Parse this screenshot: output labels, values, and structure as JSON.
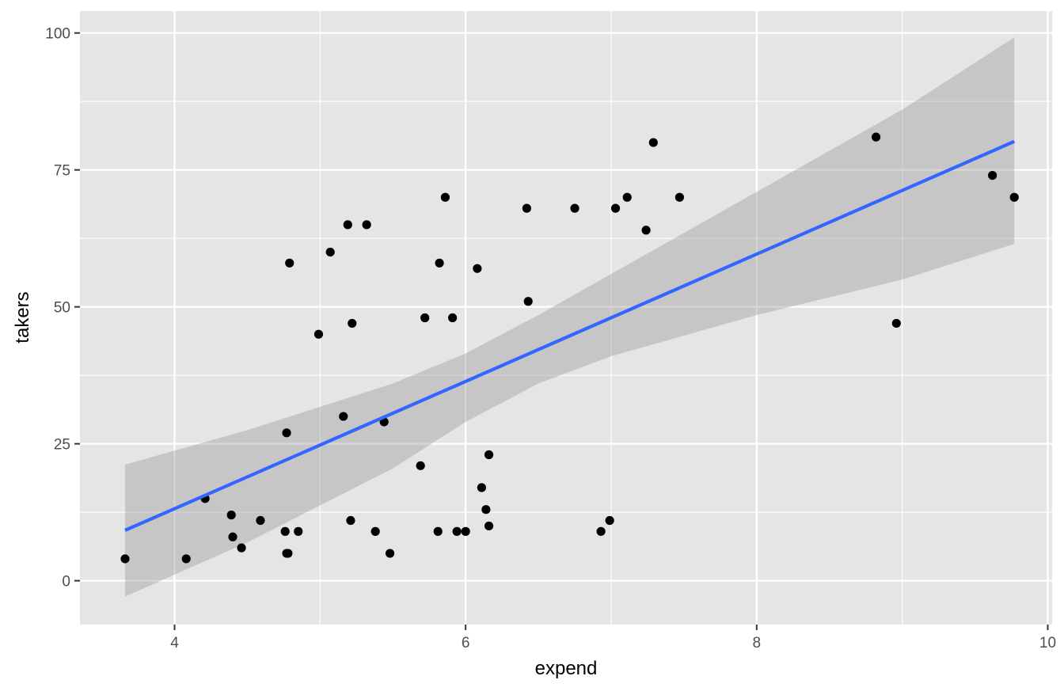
{
  "chart_data": {
    "type": "scatter",
    "xlabel": "expend",
    "ylabel": "takers",
    "xlim": [
      3.35,
      10.03
    ],
    "ylim": [
      -8.0,
      104.0
    ],
    "x_ticks": [
      4,
      6,
      8,
      10
    ],
    "y_ticks": [
      0,
      25,
      50,
      75,
      100
    ],
    "x_tick_labels": [
      "4",
      "6",
      "8",
      "10"
    ],
    "y_tick_labels": [
      "0",
      "25",
      "50",
      "75",
      "100"
    ],
    "grid": true,
    "legend": "none",
    "colors": {
      "panel": "#e5e5e5",
      "grid": "#ffffff",
      "points": "#000000",
      "fit_line": "#3366ff",
      "confidence_band": "#999999"
    },
    "points": [
      {
        "x": 3.66,
        "y": 4
      },
      {
        "x": 4.08,
        "y": 4
      },
      {
        "x": 4.21,
        "y": 15
      },
      {
        "x": 4.39,
        "y": 12
      },
      {
        "x": 4.4,
        "y": 8
      },
      {
        "x": 4.46,
        "y": 6
      },
      {
        "x": 4.59,
        "y": 11
      },
      {
        "x": 4.76,
        "y": 9
      },
      {
        "x": 4.77,
        "y": 27
      },
      {
        "x": 4.77,
        "y": 5
      },
      {
        "x": 4.78,
        "y": 5
      },
      {
        "x": 4.79,
        "y": 58
      },
      {
        "x": 4.85,
        "y": 9
      },
      {
        "x": 4.99,
        "y": 45
      },
      {
        "x": 5.07,
        "y": 60
      },
      {
        "x": 5.16,
        "y": 30
      },
      {
        "x": 5.19,
        "y": 65
      },
      {
        "x": 5.21,
        "y": 11
      },
      {
        "x": 5.22,
        "y": 47
      },
      {
        "x": 5.32,
        "y": 65
      },
      {
        "x": 5.38,
        "y": 9
      },
      {
        "x": 5.44,
        "y": 29
      },
      {
        "x": 5.48,
        "y": 5
      },
      {
        "x": 5.69,
        "y": 21
      },
      {
        "x": 5.72,
        "y": 48
      },
      {
        "x": 5.81,
        "y": 9
      },
      {
        "x": 5.82,
        "y": 58
      },
      {
        "x": 5.86,
        "y": 70
      },
      {
        "x": 5.91,
        "y": 48
      },
      {
        "x": 5.94,
        "y": 9
      },
      {
        "x": 6.0,
        "y": 9
      },
      {
        "x": 6.08,
        "y": 57
      },
      {
        "x": 6.11,
        "y": 17
      },
      {
        "x": 6.14,
        "y": 13
      },
      {
        "x": 6.16,
        "y": 10
      },
      {
        "x": 6.16,
        "y": 23
      },
      {
        "x": 6.42,
        "y": 68
      },
      {
        "x": 6.43,
        "y": 51
      },
      {
        "x": 6.75,
        "y": 68
      },
      {
        "x": 6.93,
        "y": 9
      },
      {
        "x": 6.99,
        "y": 11
      },
      {
        "x": 7.03,
        "y": 68
      },
      {
        "x": 7.11,
        "y": 70
      },
      {
        "x": 7.24,
        "y": 64
      },
      {
        "x": 7.29,
        "y": 80
      },
      {
        "x": 7.47,
        "y": 70
      },
      {
        "x": 8.82,
        "y": 81
      },
      {
        "x": 8.96,
        "y": 47
      },
      {
        "x": 9.62,
        "y": 74
      },
      {
        "x": 9.77,
        "y": 70
      }
    ],
    "fit_line": {
      "x": [
        3.66,
        9.77
      ],
      "y": [
        9.2,
        80.2
      ]
    },
    "confidence_band": {
      "x": [
        3.66,
        4.5,
        5.5,
        6.0,
        6.5,
        7.0,
        8.0,
        9.0,
        9.77
      ],
      "upper": [
        21.2,
        27.5,
        36.0,
        41.5,
        48.5,
        56.0,
        71.0,
        86.0,
        99.2
      ],
      "lower": [
        -2.9,
        7.0,
        20.5,
        29.0,
        36.0,
        41.0,
        48.5,
        55.0,
        61.5
      ]
    }
  }
}
